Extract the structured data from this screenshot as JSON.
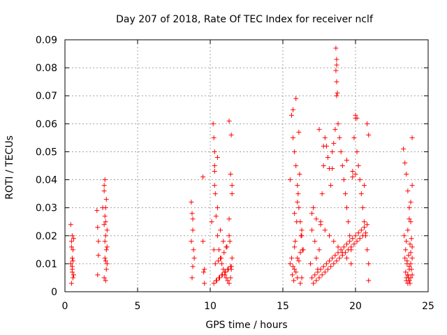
{
  "chart_data": {
    "type": "scatter",
    "title": "Day 207 of 2018, Rate Of TEC Index for receiver nclf",
    "xlabel": "GPS time / hours",
    "ylabel": "ROTI / TECUs",
    "xlim": [
      0,
      25
    ],
    "ylim": [
      0,
      0.09
    ],
    "xticks": [
      0,
      5,
      10,
      15,
      20,
      25
    ],
    "yticks": [
      0,
      0.01,
      0.02,
      0.03,
      0.04,
      0.05,
      0.06,
      0.07,
      0.08,
      0.09
    ],
    "xtick_labels": [
      "0",
      "5",
      "10",
      "15",
      "20",
      "25"
    ],
    "ytick_labels": [
      "0",
      "0.01",
      "0.02",
      "0.03",
      "0.04",
      "0.05",
      "0.06",
      "0.07",
      "0.08",
      "0.09"
    ],
    "grid": true,
    "marker": "+",
    "marker_color": "#ff0000",
    "series": [
      {
        "name": "ROTI",
        "x": [
          0.4,
          0.45,
          0.5,
          0.5,
          0.55,
          0.55,
          0.6,
          0.4,
          0.5,
          0.45,
          0.55,
          0.5,
          0.6,
          0.45,
          0.5,
          2.2,
          2.25,
          2.3,
          2.25,
          2.3,
          2.6,
          2.7,
          2.75,
          2.8,
          2.85,
          2.9,
          2.7,
          2.8,
          2.75,
          2.85,
          2.9,
          2.8,
          2.75,
          2.7,
          2.85,
          2.8,
          2.9,
          2.75,
          2.8,
          2.7,
          8.7,
          8.75,
          8.8,
          8.85,
          8.8,
          8.75,
          8.9,
          8.7,
          8.8,
          9.5,
          9.5,
          9.6,
          9.6,
          9.55,
          10.1,
          10.2,
          10.25,
          10.3,
          10.35,
          10.4,
          10.5,
          10.6,
          10.7,
          10.8,
          10.9,
          11.0,
          11.1,
          11.2,
          11.3,
          11.4,
          11.45,
          11.5,
          10.3,
          10.5,
          10.7,
          10.9,
          11.1,
          11.3,
          10.25,
          10.45,
          10.65,
          10.85,
          11.05,
          11.25,
          11.45,
          10.35,
          10.55,
          10.75,
          10.95,
          11.15,
          11.35,
          10.4,
          10.6,
          10.8,
          11.0,
          11.2,
          11.4,
          10.3,
          10.5,
          11.3,
          11.45,
          11.5,
          11.5,
          11.4,
          11.3,
          10.3,
          10.25,
          15.5,
          15.6,
          15.7,
          15.8,
          15.9,
          16.0,
          16.1,
          16.2,
          16.3,
          16.4,
          15.6,
          15.8,
          16.0,
          16.2,
          15.7,
          15.9,
          16.1,
          16.3,
          15.5,
          15.65,
          15.75,
          15.85,
          15.95,
          16.05,
          16.15,
          16.25,
          16.35,
          15.8,
          16.0,
          16.2,
          15.7,
          15.9,
          16.1,
          16.3,
          15.8,
          16.0,
          16.9,
          17.0,
          17.1,
          17.2,
          17.3,
          17.4,
          17.5,
          17.6,
          17.7,
          17.8,
          17.9,
          18.0,
          18.1,
          18.2,
          18.3,
          18.4,
          18.5,
          18.6,
          18.7,
          18.8,
          18.9,
          19.0,
          19.1,
          19.2,
          19.3,
          19.4,
          19.5,
          19.6,
          19.7,
          19.8,
          19.9,
          20.0,
          20.1,
          20.2,
          20.3,
          20.4,
          20.5,
          20.6,
          20.7,
          20.8,
          20.9,
          17.0,
          17.2,
          17.4,
          17.6,
          17.8,
          18.0,
          18.2,
          18.4,
          18.6,
          18.8,
          19.0,
          19.2,
          19.4,
          19.6,
          19.8,
          20.0,
          20.2,
          20.4,
          20.6,
          20.8,
          17.1,
          17.3,
          17.5,
          17.7,
          17.9,
          18.1,
          18.3,
          18.5,
          18.7,
          18.9,
          19.1,
          19.3,
          19.5,
          19.7,
          19.9,
          20.1,
          20.3,
          20.5,
          20.7,
          20.9,
          18.65,
          18.7,
          18.7,
          18.75,
          18.65,
          18.7,
          20.0,
          20.1,
          20.8,
          20.9,
          17.5,
          17.8,
          18.1,
          18.4,
          19.4,
          19.8,
          20.0,
          20.6,
          17.0,
          17.3,
          17.6,
          17.9,
          18.2,
          18.5,
          18.8,
          19.1,
          19.4,
          19.7,
          23.3,
          23.4,
          23.5,
          23.6,
          23.7,
          23.8,
          23.9,
          23.35,
          23.45,
          23.55,
          23.65,
          23.75,
          23.85,
          23.4,
          23.5,
          23.6,
          23.7,
          23.8,
          23.9,
          23.5,
          23.6,
          23.7,
          23.8,
          23.9,
          23.45,
          23.55,
          23.65,
          23.75,
          23.85,
          23.5,
          23.6,
          23.7,
          23.8,
          23.9,
          23.6,
          23.7,
          23.8,
          23.9
        ],
        "y": [
          0.024,
          0.018,
          0.012,
          0.008,
          0.005,
          0.015,
          0.019,
          0.01,
          0.007,
          0.003,
          0.011,
          0.02,
          0.006,
          0.016,
          0.009,
          0.029,
          0.023,
          0.013,
          0.006,
          0.018,
          0.03,
          0.036,
          0.04,
          0.025,
          0.015,
          0.01,
          0.005,
          0.02,
          0.012,
          0.008,
          0.022,
          0.03,
          0.018,
          0.038,
          0.033,
          0.004,
          0.016,
          0.027,
          0.011,
          0.024,
          0.032,
          0.028,
          0.022,
          0.015,
          0.009,
          0.005,
          0.012,
          0.018,
          0.026,
          0.041,
          0.018,
          0.008,
          0.003,
          0.007,
          0.025,
          0.06,
          0.055,
          0.045,
          0.035,
          0.027,
          0.02,
          0.015,
          0.012,
          0.01,
          0.008,
          0.006,
          0.005,
          0.004,
          0.003,
          0.005,
          0.008,
          0.012,
          0.038,
          0.03,
          0.022,
          0.018,
          0.016,
          0.02,
          0.003,
          0.004,
          0.005,
          0.006,
          0.007,
          0.008,
          0.009,
          0.01,
          0.011,
          0.012,
          0.014,
          0.016,
          0.018,
          0.004,
          0.005,
          0.006,
          0.007,
          0.008,
          0.009,
          0.05,
          0.048,
          0.061,
          0.056,
          0.035,
          0.038,
          0.042,
          0.026,
          0.043,
          0.015,
          0.04,
          0.063,
          0.055,
          0.05,
          0.045,
          0.038,
          0.03,
          0.025,
          0.02,
          0.015,
          0.012,
          0.008,
          0.005,
          0.003,
          0.065,
          0.069,
          0.057,
          0.022,
          0.01,
          0.006,
          0.004,
          0.018,
          0.025,
          0.035,
          0.042,
          0.02,
          0.015,
          0.028,
          0.032,
          0.014,
          0.009,
          0.007,
          0.011,
          0.005,
          0.016,
          0.012,
          0.01,
          0.022,
          0.03,
          0.018,
          0.012,
          0.008,
          0.015,
          0.025,
          0.035,
          0.045,
          0.055,
          0.052,
          0.048,
          0.044,
          0.038,
          0.05,
          0.053,
          0.058,
          0.07,
          0.06,
          0.055,
          0.05,
          0.045,
          0.04,
          0.035,
          0.03,
          0.025,
          0.02,
          0.015,
          0.043,
          0.055,
          0.062,
          0.05,
          0.045,
          0.04,
          0.035,
          0.03,
          0.025,
          0.02,
          0.015,
          0.01,
          0.005,
          0.006,
          0.007,
          0.008,
          0.009,
          0.01,
          0.011,
          0.012,
          0.013,
          0.014,
          0.015,
          0.016,
          0.017,
          0.018,
          0.019,
          0.02,
          0.021,
          0.022,
          0.023,
          0.024,
          0.003,
          0.004,
          0.005,
          0.006,
          0.007,
          0.008,
          0.009,
          0.01,
          0.011,
          0.012,
          0.013,
          0.014,
          0.015,
          0.016,
          0.017,
          0.018,
          0.019,
          0.02,
          0.021,
          0.004,
          0.087,
          0.083,
          0.081,
          0.071,
          0.079,
          0.075,
          0.063,
          0.062,
          0.06,
          0.056,
          0.058,
          0.052,
          0.048,
          0.044,
          0.047,
          0.041,
          0.042,
          0.038,
          0.028,
          0.026,
          0.024,
          0.022,
          0.02,
          0.018,
          0.016,
          0.014,
          0.012,
          0.01,
          0.051,
          0.046,
          0.042,
          0.036,
          0.03,
          0.025,
          0.055,
          0.02,
          0.015,
          0.01,
          0.005,
          0.003,
          0.008,
          0.012,
          0.018,
          0.022,
          0.026,
          0.032,
          0.038,
          0.004,
          0.006,
          0.009,
          0.014,
          0.016,
          0.007,
          0.011,
          0.013,
          0.017,
          0.019,
          0.005,
          0.006,
          0.008,
          0.01,
          0.012,
          0.003,
          0.004,
          0.005,
          0.006
        ]
      }
    ]
  }
}
